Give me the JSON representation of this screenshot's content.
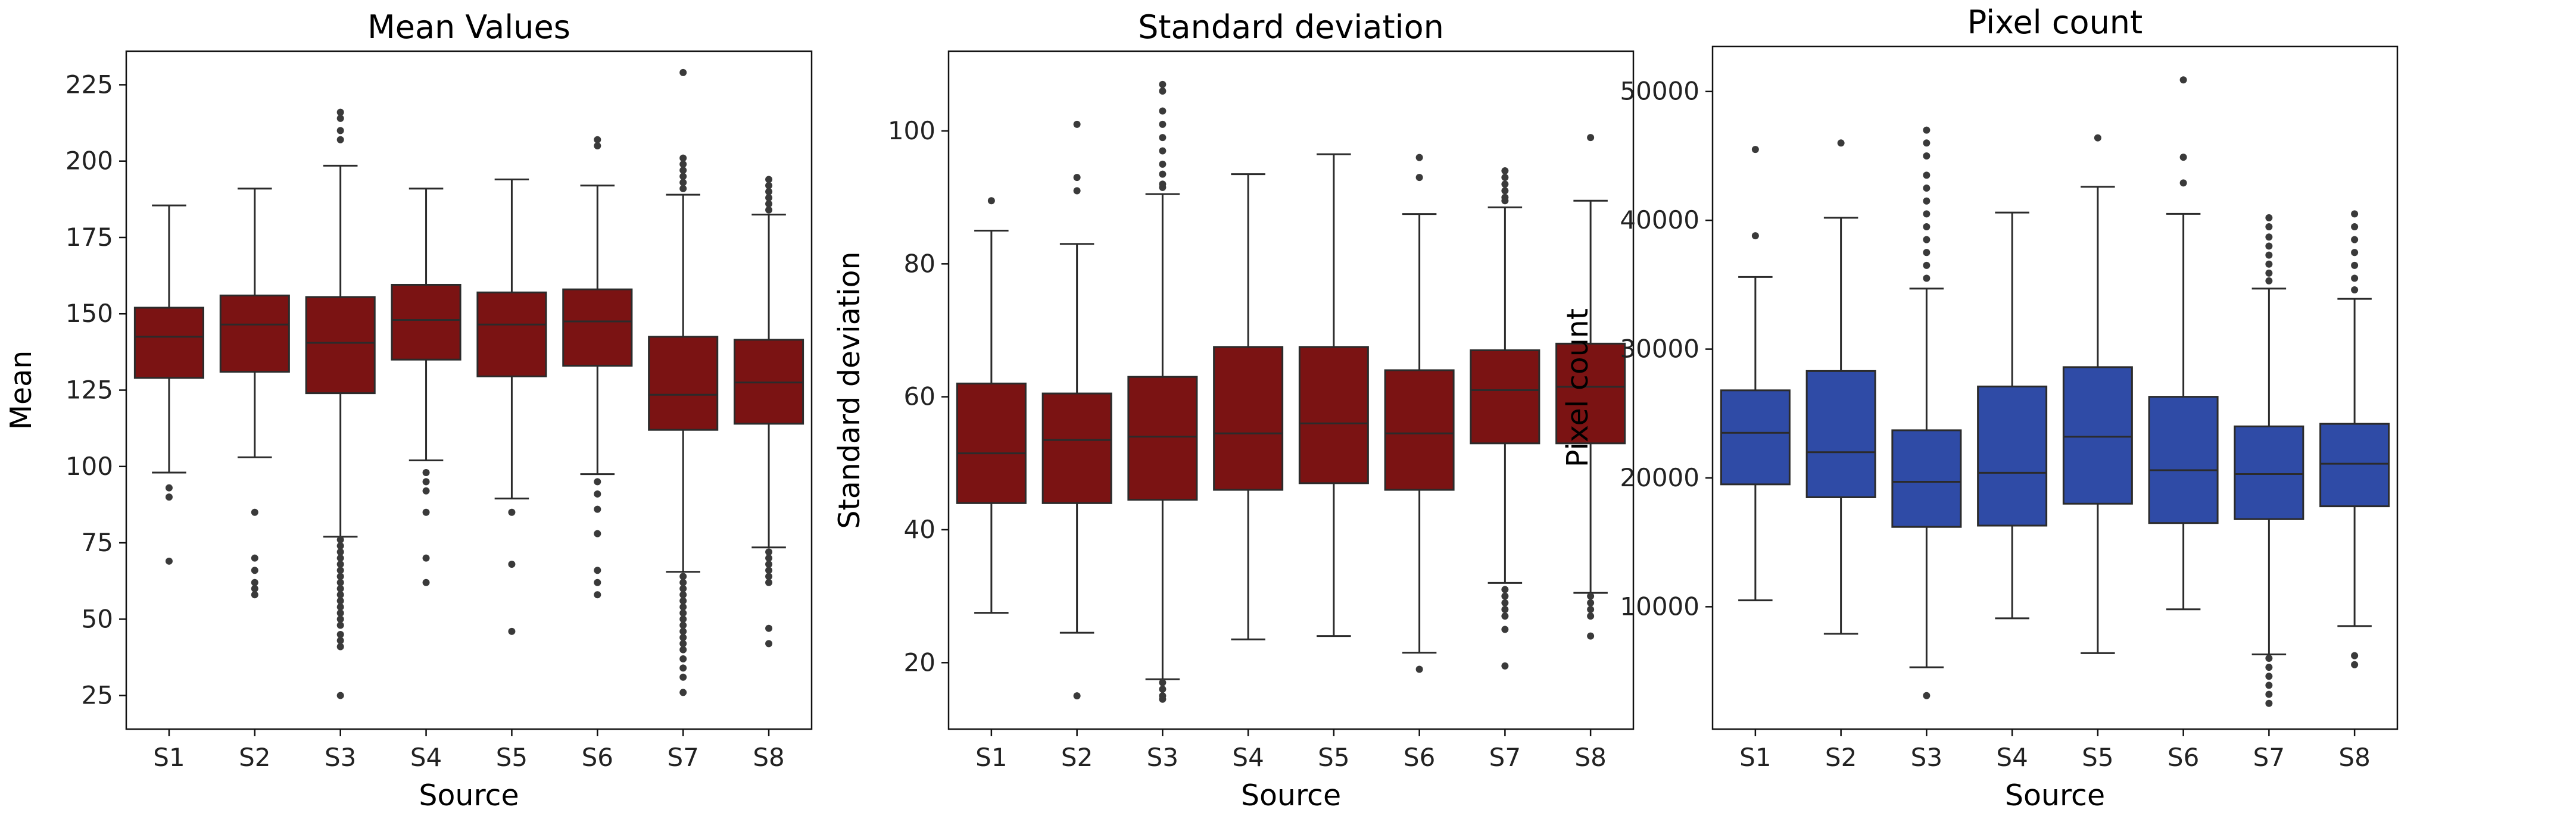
{
  "chart_data": [
    {
      "type": "box",
      "title": "Mean Values",
      "xlabel": "Source",
      "ylabel": "Mean",
      "color": "#7b1313",
      "categories": [
        "S1",
        "S2",
        "S3",
        "S4",
        "S5",
        "S6",
        "S7",
        "S8"
      ],
      "ylim": [
        14,
        236
      ],
      "yticks": [
        25,
        50,
        75,
        100,
        125,
        150,
        175,
        200,
        225
      ],
      "grid": false,
      "boxes": [
        {
          "q1": 129,
          "median": 142.5,
          "q3": 152,
          "whislo": 98,
          "whishi": 185.5,
          "fliers": [
            93,
            90,
            69
          ]
        },
        {
          "q1": 131,
          "median": 146.5,
          "q3": 156,
          "whislo": 103,
          "whishi": 191,
          "fliers": [
            85,
            70,
            66,
            62,
            60,
            58
          ]
        },
        {
          "q1": 124,
          "median": 140.5,
          "q3": 155.5,
          "whislo": 77,
          "whishi": 198.5,
          "fliers": [
            216,
            214,
            210,
            207,
            76,
            74,
            72,
            70,
            68,
            66,
            64,
            62,
            60,
            58,
            56,
            54,
            52,
            50,
            48,
            45,
            43,
            41,
            25
          ]
        },
        {
          "q1": 135,
          "median": 148,
          "q3": 159.5,
          "whislo": 102,
          "whishi": 191,
          "fliers": [
            98,
            95,
            92,
            85,
            70,
            62
          ]
        },
        {
          "q1": 129.5,
          "median": 146.5,
          "q3": 157,
          "whislo": 89.5,
          "whishi": 194,
          "fliers": [
            85,
            68,
            46
          ]
        },
        {
          "q1": 133,
          "median": 147.5,
          "q3": 158,
          "whislo": 97.5,
          "whishi": 192,
          "fliers": [
            207,
            205,
            95,
            91,
            86,
            78,
            66,
            62,
            58
          ]
        },
        {
          "q1": 112,
          "median": 123.5,
          "q3": 142.5,
          "whislo": 65.5,
          "whishi": 189,
          "fliers": [
            229,
            201,
            199,
            197,
            195,
            193,
            191,
            64,
            62,
            60,
            58,
            56,
            54,
            52,
            50,
            48,
            46,
            44,
            42,
            40,
            37,
            34,
            31,
            26
          ]
        },
        {
          "q1": 114,
          "median": 127.5,
          "q3": 141.5,
          "whislo": 73.5,
          "whishi": 182.5,
          "fliers": [
            194,
            192,
            190,
            188,
            186,
            184,
            72,
            70,
            68,
            66,
            64,
            62,
            47,
            42
          ]
        }
      ]
    },
    {
      "type": "box",
      "title": "Standard deviation",
      "xlabel": "Source",
      "ylabel": "Standard deviation",
      "color": "#7b1313",
      "categories": [
        "S1",
        "S2",
        "S3",
        "S4",
        "S5",
        "S6",
        "S7",
        "S8"
      ],
      "ylim": [
        10,
        112
      ],
      "yticks": [
        20,
        40,
        60,
        80,
        100
      ],
      "grid": false,
      "boxes": [
        {
          "q1": 44,
          "median": 51.5,
          "q3": 62,
          "whislo": 27.5,
          "whishi": 85,
          "fliers": [
            89.5
          ]
        },
        {
          "q1": 44,
          "median": 53.5,
          "q3": 60.5,
          "whislo": 24.5,
          "whishi": 83,
          "fliers": [
            101,
            93,
            91,
            15
          ]
        },
        {
          "q1": 44.5,
          "median": 54,
          "q3": 63,
          "whislo": 17.5,
          "whishi": 90.5,
          "fliers": [
            107,
            106,
            103,
            101,
            99,
            97,
            95,
            93.5,
            92,
            91.5,
            17,
            16,
            15,
            14.5
          ]
        },
        {
          "q1": 46,
          "median": 54.5,
          "q3": 67.5,
          "whislo": 23.5,
          "whishi": 93.5,
          "fliers": []
        },
        {
          "q1": 47,
          "median": 56,
          "q3": 67.5,
          "whislo": 24,
          "whishi": 96.5,
          "fliers": []
        },
        {
          "q1": 46,
          "median": 54.5,
          "q3": 64,
          "whislo": 21.5,
          "whishi": 87.5,
          "fliers": [
            96,
            93,
            19
          ]
        },
        {
          "q1": 53,
          "median": 61,
          "q3": 67,
          "whislo": 32,
          "whishi": 88.5,
          "fliers": [
            94,
            93,
            92,
            91,
            90,
            89.5,
            31,
            30,
            29,
            28,
            27,
            25,
            19.5
          ]
        },
        {
          "q1": 53,
          "median": 61.5,
          "q3": 68,
          "whislo": 30.5,
          "whishi": 89.5,
          "fliers": [
            99,
            30,
            29,
            28,
            27,
            24
          ]
        }
      ]
    },
    {
      "type": "box",
      "title": "Pixel count",
      "xlabel": "Source",
      "ylabel": "Pixel count",
      "color": "#2f4ba6",
      "categories": [
        "S1",
        "S2",
        "S3",
        "S4",
        "S5",
        "S6",
        "S7",
        "S8"
      ],
      "ylim": [
        500,
        53500
      ],
      "yticks": [
        10000,
        20000,
        30000,
        40000,
        50000
      ],
      "grid": false,
      "boxes": [
        {
          "q1": 19500,
          "median": 23500,
          "q3": 26800,
          "whislo": 10500,
          "whishi": 35600,
          "fliers": [
            45500,
            38800
          ]
        },
        {
          "q1": 18500,
          "median": 22000,
          "q3": 28300,
          "whislo": 7900,
          "whishi": 40200,
          "fliers": [
            46000
          ]
        },
        {
          "q1": 16200,
          "median": 19700,
          "q3": 23700,
          "whislo": 5300,
          "whishi": 34700,
          "fliers": [
            47000,
            46000,
            45000,
            43500,
            42500,
            41500,
            40500,
            39500,
            38500,
            37500,
            36500,
            35500,
            3100
          ]
        },
        {
          "q1": 16300,
          "median": 20400,
          "q3": 27100,
          "whislo": 9100,
          "whishi": 40600,
          "fliers": []
        },
        {
          "q1": 18000,
          "median": 23200,
          "q3": 28600,
          "whislo": 6400,
          "whishi": 42600,
          "fliers": [
            46400
          ]
        },
        {
          "q1": 16500,
          "median": 20600,
          "q3": 26300,
          "whislo": 9800,
          "whishi": 40500,
          "fliers": [
            50900,
            44900,
            42900
          ]
        },
        {
          "q1": 16800,
          "median": 20300,
          "q3": 24000,
          "whislo": 6300,
          "whishi": 34700,
          "fliers": [
            40200,
            39500,
            38700,
            38000,
            37300,
            36600,
            35900,
            35300,
            6000,
            5300,
            4600,
            3900,
            3200,
            2500
          ]
        },
        {
          "q1": 17800,
          "median": 21100,
          "q3": 24200,
          "whislo": 8500,
          "whishi": 33900,
          "fliers": [
            40500,
            39500,
            38500,
            37500,
            36500,
            35500,
            34600,
            6200,
            5500
          ]
        }
      ]
    }
  ]
}
